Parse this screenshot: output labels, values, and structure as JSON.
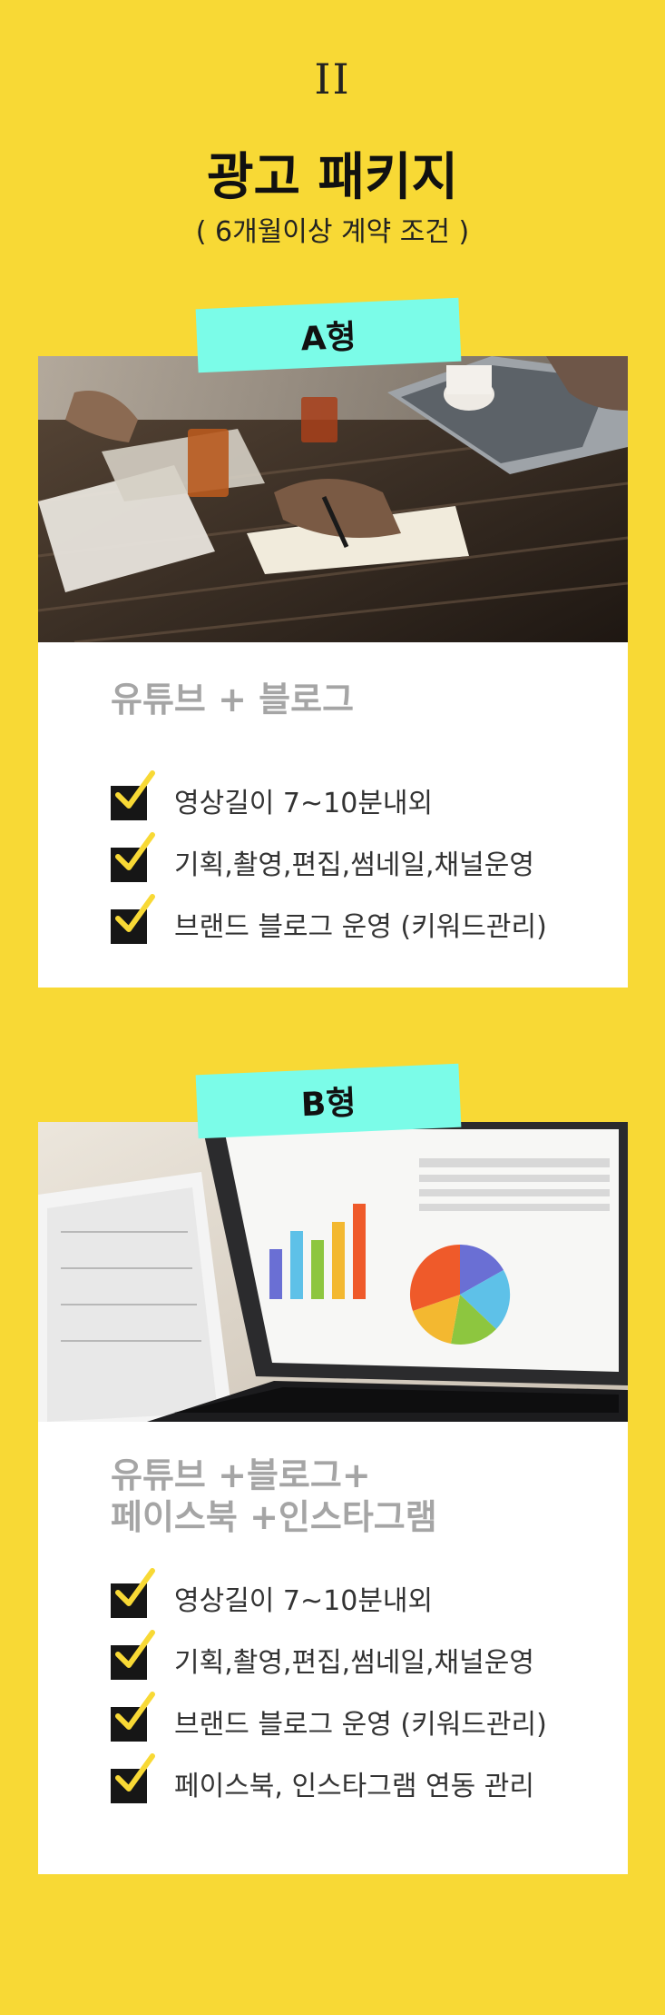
{
  "header": {
    "section_number": "II",
    "title": "광고 패키지",
    "subtitle": "( 6개월이상 계약 조건 )"
  },
  "packages": [
    {
      "tag": "A형",
      "name": "유튜브 + 블로그",
      "features": [
        "영상길이 7~10분내외",
        "기획,촬영,편집,썸네일,채널운영",
        "브랜드 블로그 운영 (키워드관리)"
      ]
    },
    {
      "tag": "B형",
      "name_line1": "유튜브 +블로그+",
      "name_line2": "페이스북 +인스타그램",
      "features": [
        "영상길이 7~10분내외",
        "기획,촬영,편집,썸네일,채널운영",
        "브랜드 블로그 운영 (키워드관리)",
        "페이스북, 인스타그램 연동 관리"
      ]
    }
  ],
  "colors": {
    "background": "#f8d935",
    "tag": "#7bfce8",
    "card": "#ffffff",
    "card_title": "#a5a5a5",
    "check_box": "#161616",
    "check_mark": "#f8d935"
  },
  "icons": [
    "checkbox-check-icon"
  ]
}
